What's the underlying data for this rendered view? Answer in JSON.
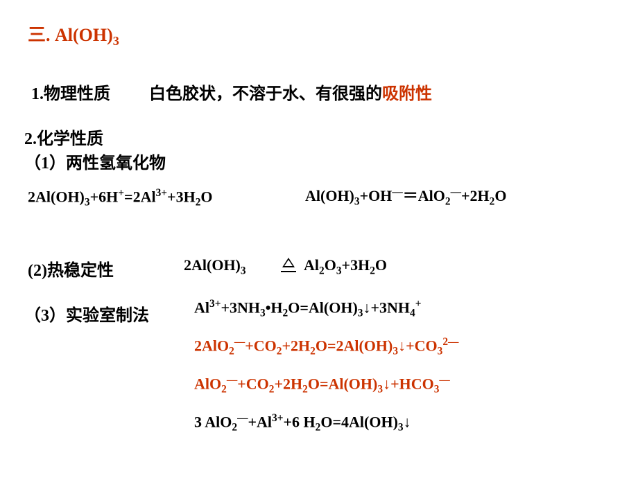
{
  "title_prefix": "三. ",
  "title_formula": "Al(OH)",
  "title_sub": "3",
  "sec1_label": "1.物理性质",
  "sec1_text_a": "白色胶状，不溶于水、有很强的",
  "sec1_text_b": "吸附性",
  "sec2_label": "2.化学性质",
  "sec2_1_label": "（1）两性氢氧化物",
  "eq1": "2Al(OH)<sub>3</sub>+6H<sup>+</sup>=2Al<sup>3+</sup>+3H<sub>2</sub>O",
  "eq2": "Al(OH)<sub>3</sub>+OH<sup>―</sup>＝AlO<sub>2</sub><sup>―</sup>+2H<sub>2</sub>O",
  "sec2_2_label": "(2)热稳定性",
  "eq3a": "2Al(OH)<sub>3</sub>",
  "eq3b": "Al<sub>2</sub>O<sub>3</sub>+3H<sub>2</sub>O",
  "sec2_3_label": "（3）实验室制法",
  "eq4": "Al<sup>3+</sup>+3NH<sub>3</sub>•H<sub>2</sub>O=Al(OH)<sub>3</sub>↓+3NH<sub>4</sub><sup>+</sup>",
  "eq5": "2AlO<sub>2</sub><sup>―</sup>+CO<sub>2</sub>+2H<sub>2</sub>O=2Al(OH)<sub>3</sub>↓+CO<sub>3</sub><sup>2―</sup>",
  "eq6": "AlO<sub>2</sub><sup>―</sup>+CO<sub>2</sub>+2H<sub>2</sub>O=Al(OH)<sub>3</sub>↓+HCO<sub>3</sub><sup>―</sup>",
  "eq7": "3 AlO<sub>2</sub><sup>―</sup>+Al<sup>3+</sup>+6 H<sub>2</sub>O=4Al(OH)<sub>3</sub>↓",
  "colors": {
    "accent": "#cc3300",
    "text": "#000000",
    "background": "#ffffff"
  },
  "fonts": {
    "title_size": 26,
    "heading_size": 24,
    "body_size": 24,
    "equation_size": 22
  }
}
